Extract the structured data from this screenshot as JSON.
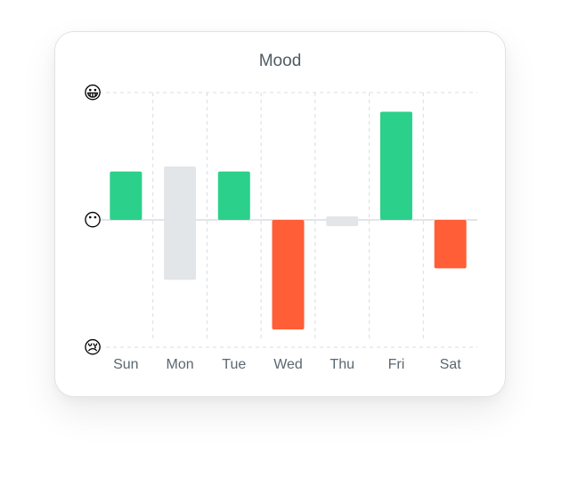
{
  "chart_data": {
    "type": "bar",
    "title": "Mood",
    "categories": [
      "Sun",
      "Mon",
      "Tue",
      "Wed",
      "Thu",
      "Fri",
      "Sat"
    ],
    "series": [
      {
        "values": [
          0.38,
          -0.47,
          0.38,
          -0.86,
          -0.05,
          0.85,
          -0.38
        ]
      }
    ],
    "ylim": [
      -1,
      1
    ],
    "y_ticks": [
      {
        "value": 1,
        "icon": "grinning-face-icon",
        "glyph": "😀"
      },
      {
        "value": 0,
        "icon": "neutral-face-icon",
        "glyph": "😶"
      },
      {
        "value": -1,
        "icon": "crying-face-icon",
        "glyph": "😢"
      }
    ],
    "grid": true,
    "colors": {
      "positive": "#2bd08a",
      "negative": "#ff5e36",
      "neutral": "#e3e6e8",
      "grid": "#d9dde0",
      "axis": "#d0d5d9"
    }
  }
}
